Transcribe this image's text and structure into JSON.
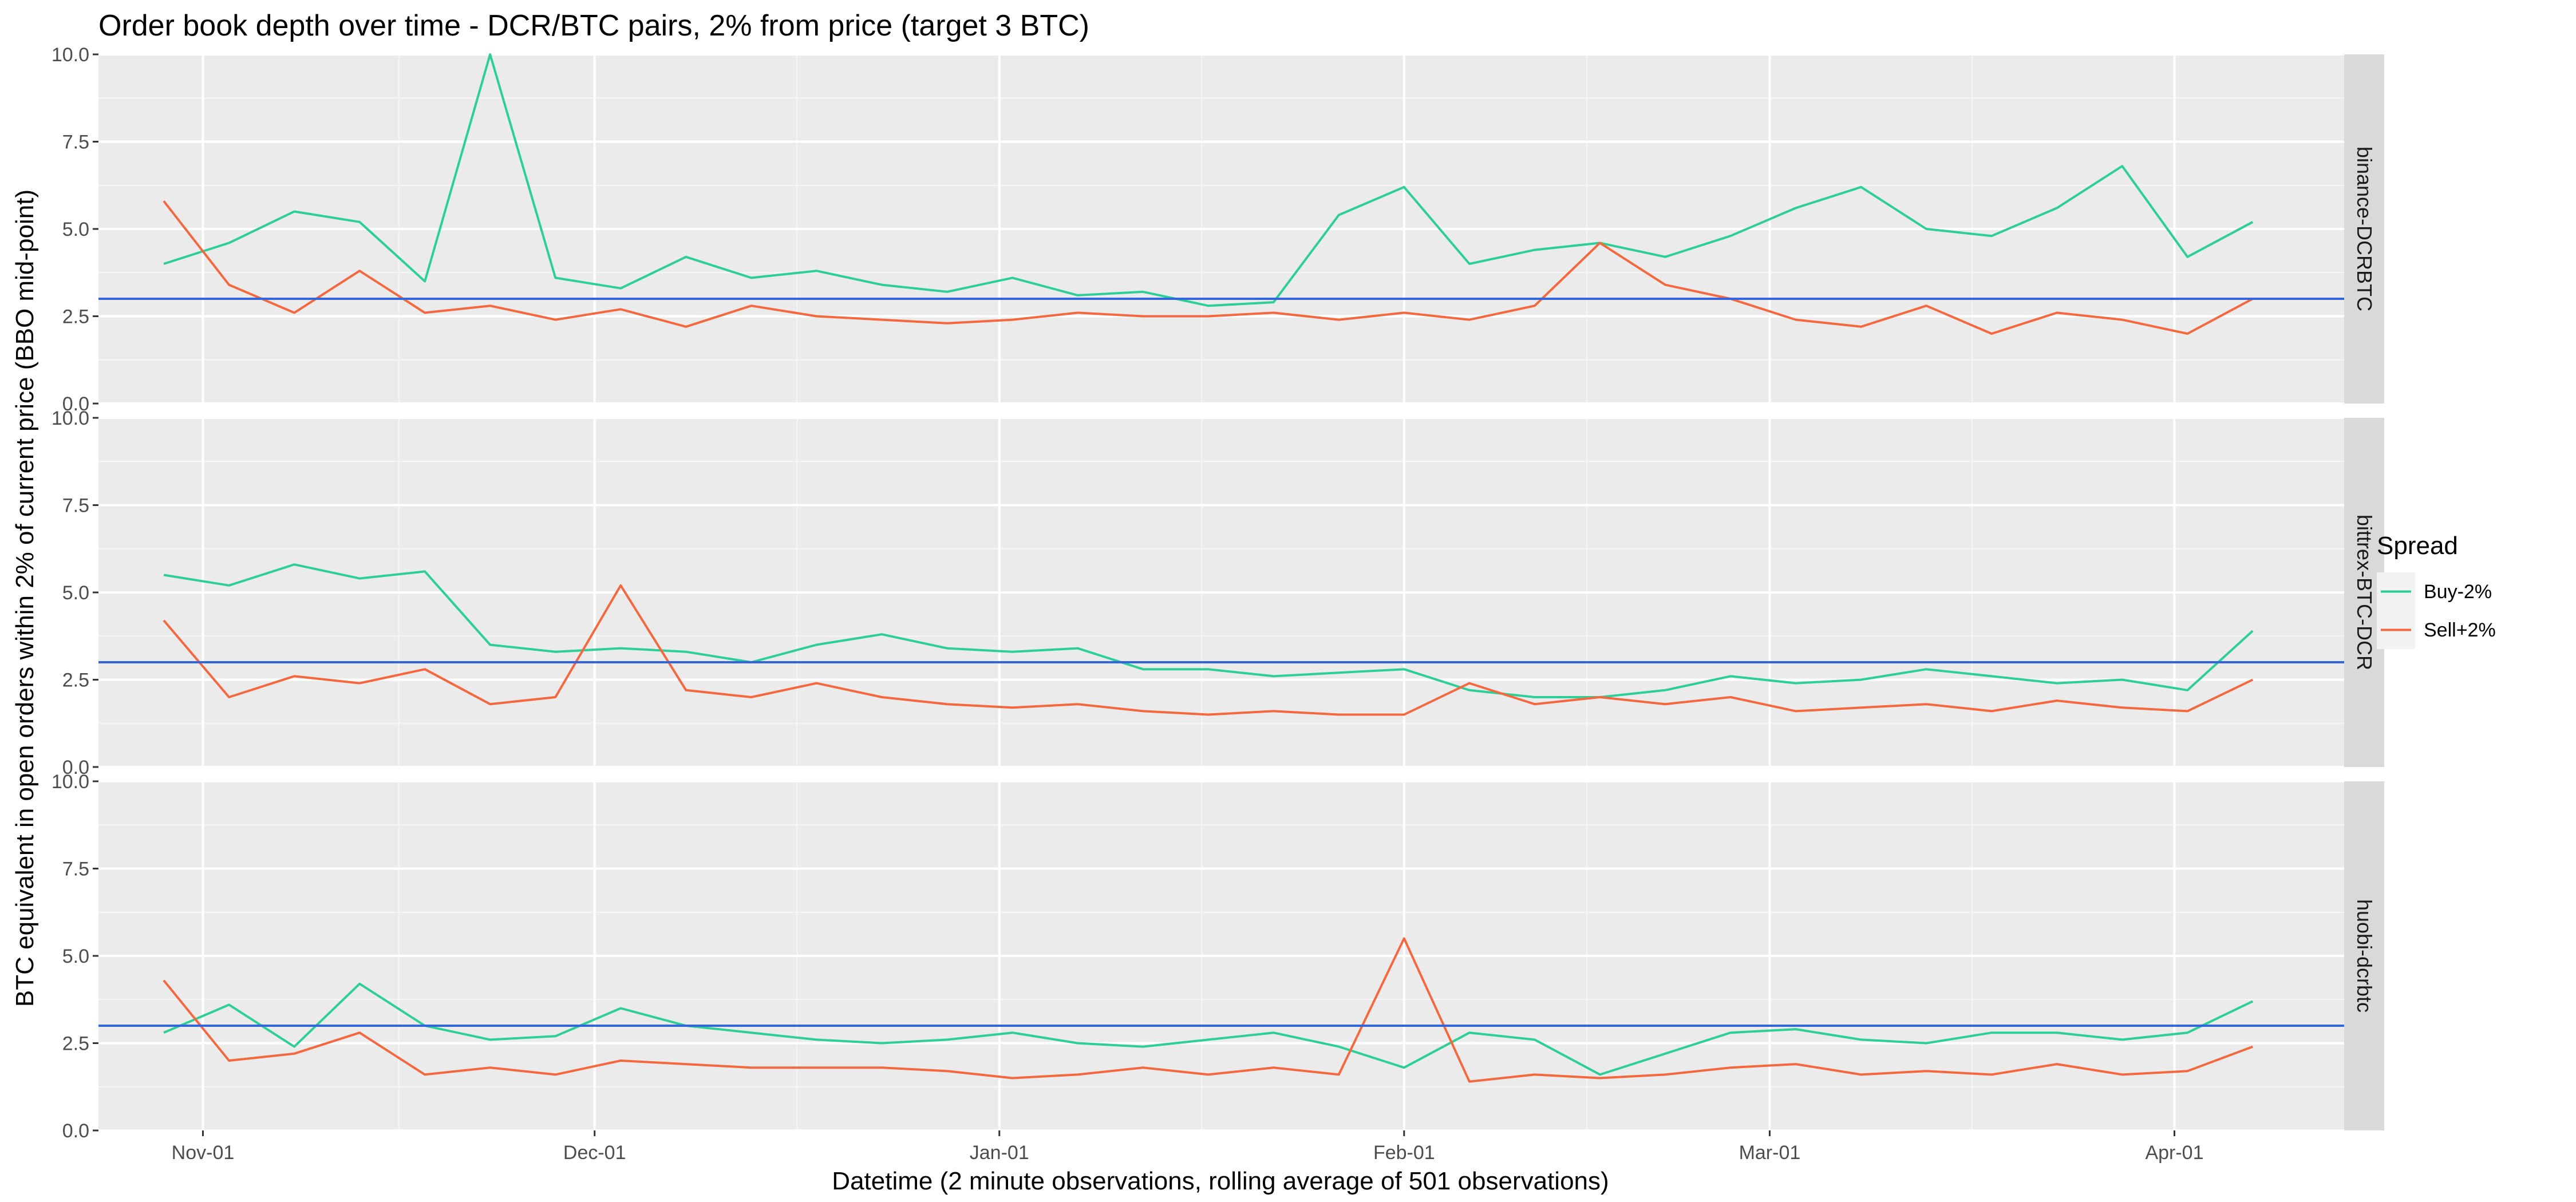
{
  "chart_data": {
    "type": "line",
    "title": "Order book depth over time - DCR/BTC pairs, 2% from price (target 3 BTC)",
    "xlabel": "Datetime (2 minute observations, rolling average of 501 observations)",
    "ylabel": "BTC equivalent in open orders within 2% of current price (BBO mid-point)",
    "x_ticks": [
      "Nov-01",
      "Dec-01",
      "Jan-01",
      "Feb-01",
      "Mar-01",
      "Apr-01"
    ],
    "x_tick_dates": [
      "2021-11-01",
      "2021-12-01",
      "2022-01-01",
      "2022-02-01",
      "2022-03-01",
      "2022-04-01"
    ],
    "xlim": [
      "2021-10-24",
      "2022-04-14"
    ],
    "ylim": [
      0,
      10
    ],
    "y_ticks": [
      "0.0",
      "2.5",
      "5.0",
      "7.5",
      "10.0"
    ],
    "y_tick_values": [
      0,
      2.5,
      5,
      7.5,
      10
    ],
    "target_line": 3,
    "target_color": "#3366dd",
    "legend": {
      "title": "Spread",
      "position": "right",
      "entries": [
        {
          "label": "Buy-2%",
          "color": "#2dcf96"
        },
        {
          "label": "Sell+2%",
          "color": "#f4683f"
        }
      ]
    },
    "x": [
      "2021-10-29",
      "2021-11-03",
      "2021-11-08",
      "2021-11-13",
      "2021-11-18",
      "2021-11-23",
      "2021-11-28",
      "2021-12-03",
      "2021-12-08",
      "2021-12-13",
      "2021-12-18",
      "2021-12-23",
      "2021-12-28",
      "2022-01-02",
      "2022-01-07",
      "2022-01-12",
      "2022-01-17",
      "2022-01-22",
      "2022-01-27",
      "2022-02-01",
      "2022-02-06",
      "2022-02-11",
      "2022-02-16",
      "2022-02-21",
      "2022-02-26",
      "2022-03-03",
      "2022-03-08",
      "2022-03-13",
      "2022-03-18",
      "2022-03-23",
      "2022-03-28",
      "2022-04-02",
      "2022-04-07"
    ],
    "panels": [
      {
        "name": "binance-DCRBTC",
        "series": [
          {
            "name": "Buy-2%",
            "values": [
              4.0,
              4.6,
              5.5,
              5.2,
              3.5,
              10.0,
              3.6,
              3.3,
              4.2,
              3.6,
              3.8,
              3.4,
              3.2,
              3.6,
              3.1,
              3.2,
              2.8,
              2.9,
              5.4,
              6.2,
              4.0,
              4.4,
              4.6,
              4.2,
              4.8,
              5.6,
              6.2,
              5.0,
              4.8,
              5.6,
              6.8,
              4.2,
              5.2
            ]
          },
          {
            "name": "Sell+2%",
            "values": [
              5.8,
              3.4,
              2.6,
              3.8,
              2.6,
              2.8,
              2.4,
              2.7,
              2.2,
              2.8,
              2.5,
              2.4,
              2.3,
              2.4,
              2.6,
              2.5,
              2.5,
              2.6,
              2.4,
              2.6,
              2.4,
              2.8,
              4.6,
              3.4,
              3.0,
              2.4,
              2.2,
              2.8,
              2.0,
              2.6,
              2.4,
              2.0,
              3.0
            ]
          }
        ]
      },
      {
        "name": "bittrex-BTC-DCR",
        "series": [
          {
            "name": "Buy-2%",
            "values": [
              5.5,
              5.2,
              5.8,
              5.4,
              5.6,
              3.5,
              3.3,
              3.4,
              3.3,
              3.0,
              3.5,
              3.8,
              3.4,
              3.3,
              3.4,
              2.8,
              2.8,
              2.6,
              2.7,
              2.8,
              2.2,
              2.0,
              2.0,
              2.2,
              2.6,
              2.4,
              2.5,
              2.8,
              2.6,
              2.4,
              2.5,
              2.2,
              3.9
            ]
          },
          {
            "name": "Sell+2%",
            "values": [
              4.2,
              2.0,
              2.6,
              2.4,
              2.8,
              1.8,
              2.0,
              5.2,
              2.2,
              2.0,
              2.4,
              2.0,
              1.8,
              1.7,
              1.8,
              1.6,
              1.5,
              1.6,
              1.5,
              1.5,
              2.4,
              1.8,
              2.0,
              1.8,
              2.0,
              1.6,
              1.7,
              1.8,
              1.6,
              1.9,
              1.7,
              1.6,
              2.5
            ]
          }
        ]
      },
      {
        "name": "huobi-dcrbtc",
        "series": [
          {
            "name": "Buy-2%",
            "values": [
              2.8,
              3.6,
              2.4,
              4.2,
              3.0,
              2.6,
              2.7,
              3.5,
              3.0,
              2.8,
              2.6,
              2.5,
              2.6,
              2.8,
              2.5,
              2.4,
              2.6,
              2.8,
              2.4,
              1.8,
              2.8,
              2.6,
              1.6,
              2.2,
              2.8,
              2.9,
              2.6,
              2.5,
              2.8,
              2.8,
              2.6,
              2.8,
              3.7
            ]
          },
          {
            "name": "Sell+2%",
            "values": [
              4.3,
              2.0,
              2.2,
              2.8,
              1.6,
              1.8,
              1.6,
              2.0,
              1.9,
              1.8,
              1.8,
              1.8,
              1.7,
              1.5,
              1.6,
              1.8,
              1.6,
              1.8,
              1.6,
              5.5,
              1.4,
              1.6,
              1.5,
              1.6,
              1.8,
              1.9,
              1.6,
              1.7,
              1.6,
              1.9,
              1.6,
              1.7,
              2.4
            ]
          }
        ]
      }
    ]
  }
}
